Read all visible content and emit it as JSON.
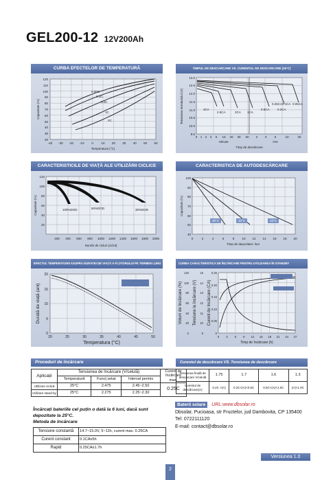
{
  "header": {
    "model": "GEL200-12",
    "spec": "12V200Ah"
  },
  "panels": [
    {
      "title": "CURBA EFECTELOR DE TEMPERATURĂ",
      "ylabel": "Capacitate (%)",
      "xlabel": "Temperatura (°C)",
      "yticks": [
        "120",
        "110",
        "100",
        "90",
        "80",
        "70",
        "60",
        "50",
        "40",
        "30",
        "20"
      ],
      "xticks": [
        "-40",
        "-30",
        "-20",
        "-10",
        "0",
        "10",
        "20",
        "30",
        "40",
        "50",
        "60"
      ],
      "labels": [
        "0.05C",
        "0.1C",
        "0.2C",
        "1C",
        "2C"
      ]
    },
    {
      "title": "TIMPUL DE DESCARCARE VS. CURENTUL DE DESCARCARE (25°C)",
      "ylabel": "Tensiunea terminalului (V)",
      "xlabel": "Timp de descărcare",
      "yticks": [
        "13.0",
        "12.5",
        "12.0",
        "11.5",
        "11.0",
        "10.5",
        "10.0",
        "9.5"
      ],
      "xticks": [
        "0",
        "1",
        "2",
        "3",
        "5",
        "10",
        "20",
        "30",
        "60",
        "2",
        "3",
        "5",
        "10",
        "20"
      ],
      "unit_left": "Minute",
      "unit_right": "Ore",
      "labels": [
        "2.5CA",
        "3CA",
        "2CA",
        "1CA",
        "0.5CA",
        "0.25CA",
        "0.1CA",
        "0.05CA",
        "0.2CA"
      ]
    },
    {
      "title": "CARACTERISTICILE DE VIAȚĂ ALE UTILIZĂRII CICLICE",
      "ylabel": "Capacitate (%)",
      "xlabel": "Număr de cicluri (ciclul)",
      "yticks": [
        "120",
        "100",
        "80",
        "60",
        "40",
        "20"
      ],
      "xticks": [
        "200",
        "400",
        "600",
        "800",
        "1000",
        "1200",
        "1400",
        "1600",
        "1800",
        "2000"
      ],
      "labels": [
        "100%DOD",
        "50%DOD",
        "30%DOD"
      ]
    },
    {
      "title": "CARACTERISTICA DE AUTODESCĂRCARE",
      "ylabel": "Capacitate (%)",
      "xlabel": "Timp de depozitare: luni",
      "yticks": [
        "100",
        "90",
        "80",
        "70",
        "60",
        "50",
        "40"
      ],
      "xticks": [
        "0",
        "2",
        "4",
        "6",
        "8",
        "10",
        "12",
        "14",
        "16",
        "18",
        "20"
      ],
      "labels": [
        "30°C",
        "20°C",
        "10°C"
      ]
    },
    {
      "title": "EFECTUL TEMPERATURII ASUPRA DURATEI DE VIAȚĂ A FLOTORULUI PE TERMEN LUNG",
      "ylabel": "Durată de viață (ani)",
      "xlabel": "Temperatura (°C)",
      "yticks": [
        "20",
        "15",
        "10",
        "5",
        "0"
      ],
      "xticks": [
        "20",
        "25",
        "30",
        "35",
        "40",
        "45",
        "50"
      ]
    },
    {
      "title": "CURBA CARACTERISTICA DE ÎNCĂRCARE PENTRU UTILIZAREA ÎN STANDBY",
      "ylabel_left": "Volum de încărcare (%)",
      "ylabel_mid": "Tensiune la încărcare (V)",
      "ylabel_right": "Curent de încărcare (CA)",
      "xlabel": "Timp de încărcare (h)",
      "yticks_left": [
        "120",
        "100",
        "80",
        "60",
        "40",
        "20",
        "0"
      ],
      "yticks_mid": [
        "15",
        "14",
        "13",
        "12",
        "11",
        "10",
        "9"
      ],
      "yticks_right": [
        "0.25",
        "0.20",
        "0.15",
        "0.10",
        "0.05",
        "0"
      ],
      "xticks": [
        "0",
        "3",
        "6",
        "9",
        "12",
        "15",
        "18",
        "21",
        "24",
        "27"
      ]
    }
  ],
  "charging_table": {
    "title": "Proceduri de încărcare",
    "col_app": "Aplicații",
    "col_voltage": "Tensiunea de încărcare (V/celulă)",
    "col_temp": "Temperatură",
    "col_func": "Funcț setat",
    "col_range": "Interval permis",
    "col_current": "Curent de încărcare max.",
    "rows": [
      {
        "app": "Utilizare ciclică",
        "temp": "25°C",
        "func": "2.475",
        "range": "2.45~2.50"
      },
      {
        "app": "Utilizare stand-by",
        "temp": "25°C",
        "func": "2.275",
        "range": "2.25~2.30"
      }
    ],
    "current": "0.25C"
  },
  "notes": {
    "line1": "Încărcați bateriile cel puțin o dată la 6 luni, dacă sunt",
    "line2": "depozitate la 25°C.",
    "line3": "Metoda de încărcare"
  },
  "method_table": [
    {
      "label": "Tensiune constantă",
      "value": "14.7~15.0V, 5~11h, curent max. 0.25CA"
    },
    {
      "label": "Curent constant",
      "value": "0.1CAx5h"
    },
    {
      "label": "Rapid",
      "value": "0.25CAx1.7h"
    }
  ],
  "cutoff_table": {
    "title": "Curentul de descărcare VS. Tensiunea de descărcare",
    "row1_label": "Tensiunea finală de descărcare V/celulă",
    "row1": [
      "1.75",
      "1.7",
      "1.6",
      "1.3"
    ],
    "row2_label": "Curentul de descărcare(A)",
    "row2": [
      "0.2C >(A)",
      "0.2C<(A)<0.5C",
      "0.5C<(A)<1.0C",
      "(A)>1.0C"
    ]
  },
  "contact": {
    "brand": "Baterii solare",
    "url": "URL:www.dbsolar.ro",
    "address": "Dbsolar, Pucioasa, str Fructelor, jud Dambovita, CP 135400",
    "tel": "Tel: 0722111120",
    "email": "E-mail: contact@dbsolar.ro"
  },
  "version": "Versiunea 1.0",
  "page_number": "2"
}
